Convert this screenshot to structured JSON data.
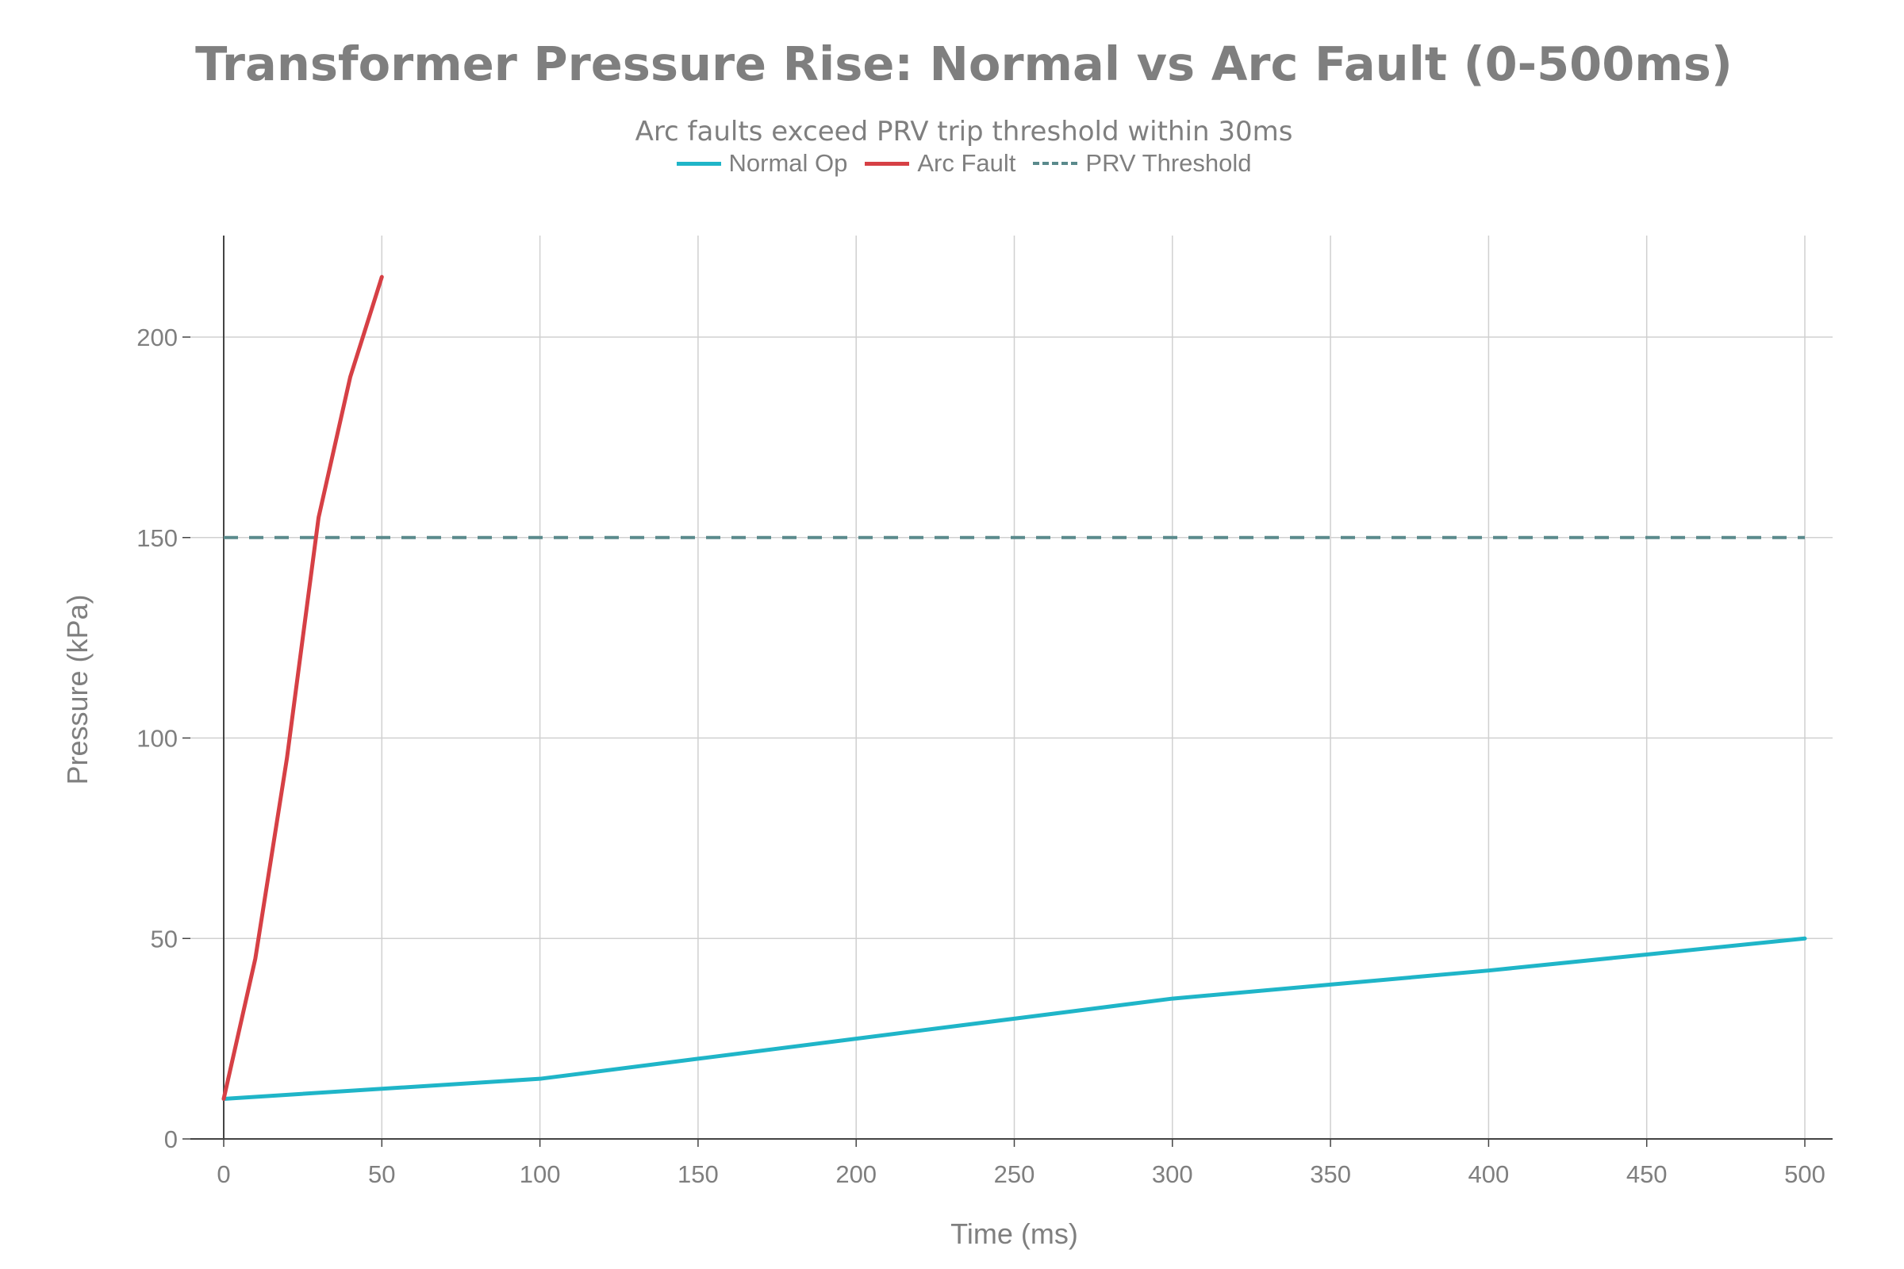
{
  "chart_data": {
    "type": "line",
    "title": "Transformer Pressure Rise: Normal vs Arc Fault (0-500ms)",
    "subtitle": "Arc faults exceed PRV trip threshold within 30ms",
    "xlabel": "Time (ms)",
    "ylabel": "Pressure (kPa)",
    "xlim": [
      0,
      510
    ],
    "ylim": [
      0,
      225
    ],
    "xticks": [
      0,
      50,
      100,
      150,
      200,
      250,
      300,
      350,
      400,
      450,
      500
    ],
    "yticks": [
      0,
      50,
      100,
      150,
      200
    ],
    "grid": true,
    "legend_position": "top-center",
    "series": [
      {
        "name": "Normal Op",
        "color": "#1fb5c8",
        "style": "solid",
        "x": [
          0,
          100,
          150,
          200,
          250,
          300,
          350,
          400,
          450,
          500
        ],
        "y": [
          10,
          15,
          20,
          25,
          30,
          35,
          38.5,
          42,
          46,
          50
        ]
      },
      {
        "name": "Arc Fault",
        "color": "#d64045",
        "style": "solid",
        "x": [
          0,
          10,
          20,
          30,
          40,
          50
        ],
        "y": [
          10,
          45,
          95,
          155,
          190,
          215
        ]
      },
      {
        "name": "PRV Threshold",
        "color": "#5a8a8c",
        "style": "dashed",
        "x": [
          0,
          500
        ],
        "y": [
          150,
          150
        ]
      }
    ]
  }
}
